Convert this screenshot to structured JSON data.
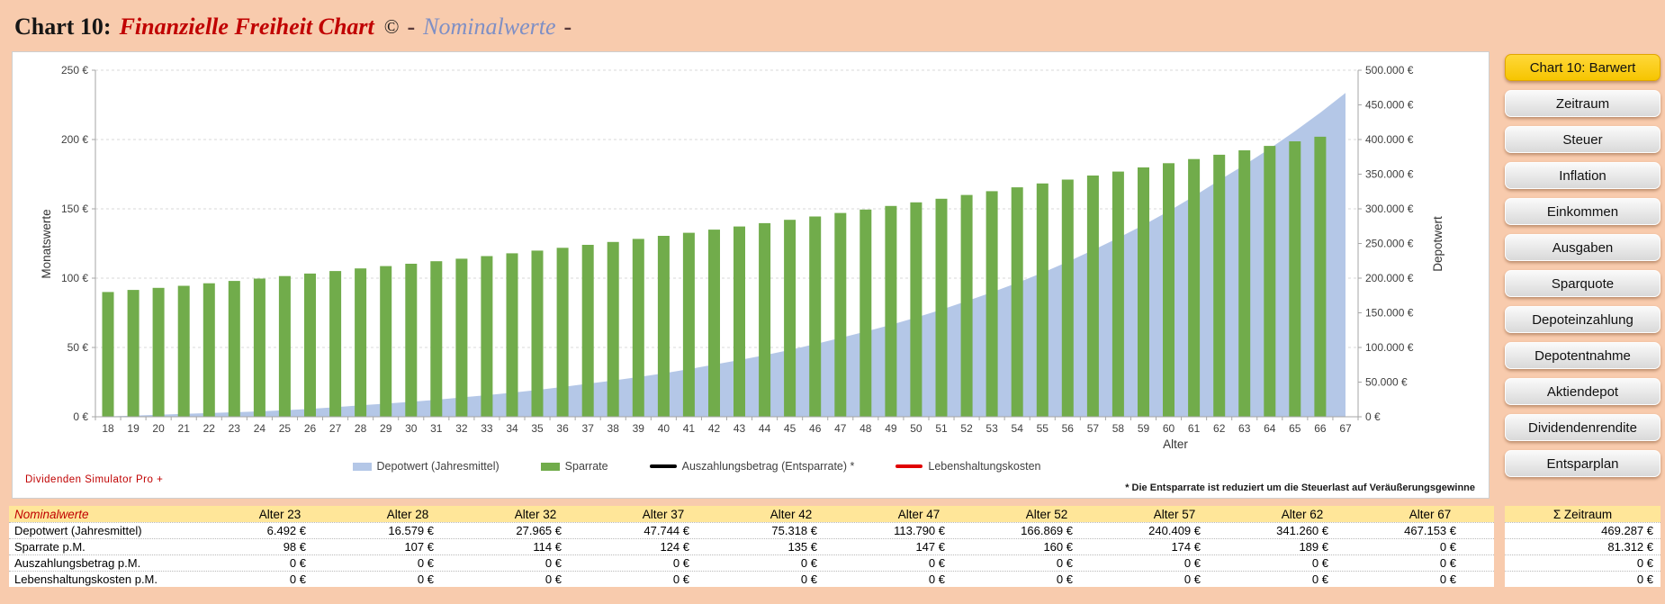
{
  "title": {
    "prefix": "Chart 10:",
    "main": "Finanzielle Freiheit Chart",
    "copyright": "©",
    "dash1": "-",
    "mode": "Nominalwerte",
    "dash2": "-"
  },
  "branding": "Dividenden Simulator Pro +",
  "footnote": "* Die Entsparrate ist reduziert um die Steuerlast auf Veräußerungsgewinne",
  "colors": {
    "background": "#F8CBAD",
    "bar_green": "#71AC4B",
    "area_blue": "#B4C7E7",
    "table_header_yellow": "#FFE699",
    "active_button_gold": "#FFD21E",
    "title_red": "#C00000",
    "title_blue": "#7E8FC5"
  },
  "nav": {
    "buttons": [
      {
        "label": "Chart 10: Barwert",
        "active": true
      },
      {
        "label": "Zeitraum",
        "active": false
      },
      {
        "label": "Steuer",
        "active": false
      },
      {
        "label": "Inflation",
        "active": false
      },
      {
        "label": "Einkommen",
        "active": false
      },
      {
        "label": "Ausgaben",
        "active": false
      },
      {
        "label": "Sparquote",
        "active": false
      },
      {
        "label": "Depoteinzahlung",
        "active": false
      },
      {
        "label": "Depotentnahme",
        "active": false
      },
      {
        "label": "Aktiendepot",
        "active": false
      },
      {
        "label": "Dividendenrendite",
        "active": false
      },
      {
        "label": "Entsparplan",
        "active": false
      }
    ]
  },
  "chart_data": {
    "type": "combo",
    "xlabel": "Alter",
    "x": [
      18,
      19,
      20,
      21,
      22,
      23,
      24,
      25,
      26,
      27,
      28,
      29,
      30,
      31,
      32,
      33,
      34,
      35,
      36,
      37,
      38,
      39,
      40,
      41,
      42,
      43,
      44,
      45,
      46,
      47,
      48,
      49,
      50,
      51,
      52,
      53,
      54,
      55,
      56,
      57,
      58,
      59,
      60,
      61,
      62,
      63,
      64,
      65,
      66,
      67
    ],
    "left_axis": {
      "title": "Monatswerte",
      "min": 0,
      "max": 250,
      "step": 50,
      "ticks": [
        "0 €",
        "50 €",
        "100 €",
        "150 €",
        "200 €",
        "250 €"
      ]
    },
    "right_axis": {
      "title": "Depotwert",
      "min": 0,
      "max": 500000,
      "step": 50000,
      "ticks": [
        "0 €",
        "50.000 €",
        "100.000 €",
        "150.000 €",
        "200.000 €",
        "250.000 €",
        "300.000 €",
        "350.000 €",
        "400.000 €",
        "450.000 €",
        "500.000 €"
      ]
    },
    "legend_position": "bottom",
    "grid": "horizontal-dashed",
    "series": [
      {
        "name": "Depotwert (Jahresmittel)",
        "type": "area",
        "axis": "right",
        "color": "#B4C7E7",
        "values": [
          500,
          1600,
          2800,
          4100,
          5300,
          6492,
          7830,
          9443,
          11389,
          13735,
          16579,
          18900,
          21546,
          24562,
          27965,
          31127,
          34647,
          38565,
          42926,
          47744,
          52304,
          57299,
          62771,
          68766,
          75318,
          81803,
          88846,
          96496,
          104804,
          113790,
          122848,
          132627,
          143185,
          154583,
          166869,
          179518,
          193126,
          207766,
          223516,
          240409,
          257863,
          276584,
          296664,
          318202,
          341260,
          363376,
          386925,
          412000,
          438700,
          467153
        ]
      },
      {
        "name": "Sparrate",
        "type": "bar",
        "axis": "left",
        "color": "#71AC4B",
        "values": [
          90,
          91.5,
          93,
          94.5,
          96.3,
          98,
          99.7,
          101.5,
          103.3,
          105.1,
          107,
          108.7,
          110.4,
          112.2,
          114,
          115.9,
          117.9,
          119.9,
          121.9,
          124,
          126.1,
          128.3,
          130.5,
          132.7,
          135,
          137.3,
          139.7,
          142.1,
          144.5,
          147,
          149.5,
          152.1,
          154.7,
          157.3,
          160,
          162.7,
          165.5,
          168.3,
          171.1,
          174,
          176.9,
          179.9,
          182.9,
          185.9,
          189,
          192.2,
          195.4,
          198.7,
          202,
          0
        ]
      },
      {
        "name": "Auszahlungsbetrag (Entsparrate) *",
        "type": "line",
        "axis": "left",
        "color": "#000000",
        "values": [
          0,
          0,
          0,
          0,
          0,
          0,
          0,
          0,
          0,
          0,
          0,
          0,
          0,
          0,
          0,
          0,
          0,
          0,
          0,
          0,
          0,
          0,
          0,
          0,
          0,
          0,
          0,
          0,
          0,
          0,
          0,
          0,
          0,
          0,
          0,
          0,
          0,
          0,
          0,
          0,
          0,
          0,
          0,
          0,
          0,
          0,
          0,
          0,
          0,
          0
        ]
      },
      {
        "name": "Lebenshaltungskosten",
        "type": "line",
        "axis": "left",
        "color": "#E00000",
        "values": [
          0,
          0,
          0,
          0,
          0,
          0,
          0,
          0,
          0,
          0,
          0,
          0,
          0,
          0,
          0,
          0,
          0,
          0,
          0,
          0,
          0,
          0,
          0,
          0,
          0,
          0,
          0,
          0,
          0,
          0,
          0,
          0,
          0,
          0,
          0,
          0,
          0,
          0,
          0,
          0,
          0,
          0,
          0,
          0,
          0,
          0,
          0,
          0,
          0,
          0
        ]
      }
    ]
  },
  "table": {
    "corner_label": "Nominalwerte",
    "columns": [
      "Alter 23",
      "Alter 28",
      "Alter 32",
      "Alter 37",
      "Alter 42",
      "Alter 47",
      "Alter 52",
      "Alter 57",
      "Alter 62",
      "Alter 67"
    ],
    "sum_column": "Σ Zeitraum",
    "rows": [
      {
        "label": "Depotwert (Jahresmittel)",
        "values": [
          "6.492 €",
          "16.579 €",
          "27.965 €",
          "47.744 €",
          "75.318 €",
          "113.790 €",
          "166.869 €",
          "240.409 €",
          "341.260 €",
          "467.153 €"
        ],
        "sum": "469.287 €"
      },
      {
        "label": "Sparrate p.M.",
        "values": [
          "98 €",
          "107 €",
          "114 €",
          "124 €",
          "135 €",
          "147 €",
          "160 €",
          "174 €",
          "189 €",
          "0 €"
        ],
        "sum": "81.312 €"
      },
      {
        "label": "Auszahlungsbetrag p.M.",
        "values": [
          "0 €",
          "0 €",
          "0 €",
          "0 €",
          "0 €",
          "0 €",
          "0 €",
          "0 €",
          "0 €",
          "0 €"
        ],
        "sum": "0 €"
      },
      {
        "label": "Lebenshaltungskosten p.M.",
        "values": [
          "0 €",
          "0 €",
          "0 €",
          "0 €",
          "0 €",
          "0 €",
          "0 €",
          "0 €",
          "0 €",
          "0 €"
        ],
        "sum": "0 €"
      }
    ]
  }
}
